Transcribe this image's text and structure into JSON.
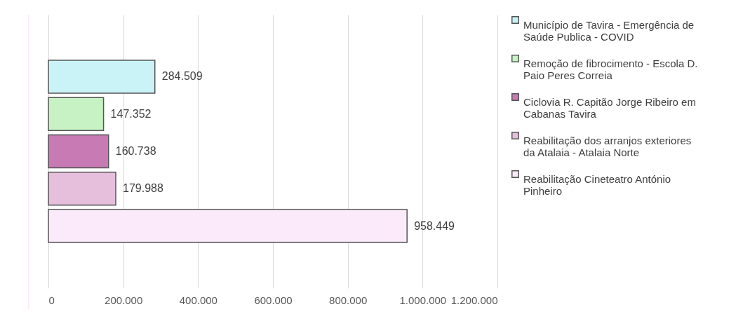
{
  "chart_data": {
    "type": "bar",
    "orientation": "horizontal",
    "categories": [
      null
    ],
    "series": [
      {
        "name": "Município de Tavira - Emergência de Saúde Publica - COVID",
        "color": "#c9f3f7",
        "values": [
          284509
        ],
        "value_labels": [
          "284.509"
        ]
      },
      {
        "name": "Remoção de fibrocimento - Escola D. Paio Peres Correia",
        "color": "#c6f2c4",
        "values": [
          147352
        ],
        "value_labels": [
          "147.352"
        ]
      },
      {
        "name": "Ciclovia R. Capitão Jorge Ribeiro em Cabanas Tavira",
        "color": "#c77ab4",
        "values": [
          160738
        ],
        "value_labels": [
          "160.738"
        ]
      },
      {
        "name": "Reabilitação dos arranjos exteriores da Atalaia - Atalaia Norte",
        "color": "#e6bfdd",
        "values": [
          179988
        ],
        "value_labels": [
          "179.988"
        ]
      },
      {
        "name": "Reabilitação Cineteatro António Pinheiro",
        "color": "#fbeafa",
        "values": [
          958449
        ],
        "value_labels": [
          "958.449"
        ]
      }
    ],
    "xlim": [
      0,
      1200000
    ],
    "xticks": [
      0,
      {
        "value": 200000,
        "label": "200.000"
      },
      {
        "value": 400000,
        "label": "400.000"
      },
      {
        "value": 600000,
        "label": "600.000"
      },
      {
        "value": 800000,
        "label": "800.000"
      },
      {
        "value": 1000000,
        "label": "1.000.000"
      },
      {
        "value": 1200000,
        "label": "1.200.000"
      }
    ],
    "grid": "x",
    "legend": "right"
  }
}
